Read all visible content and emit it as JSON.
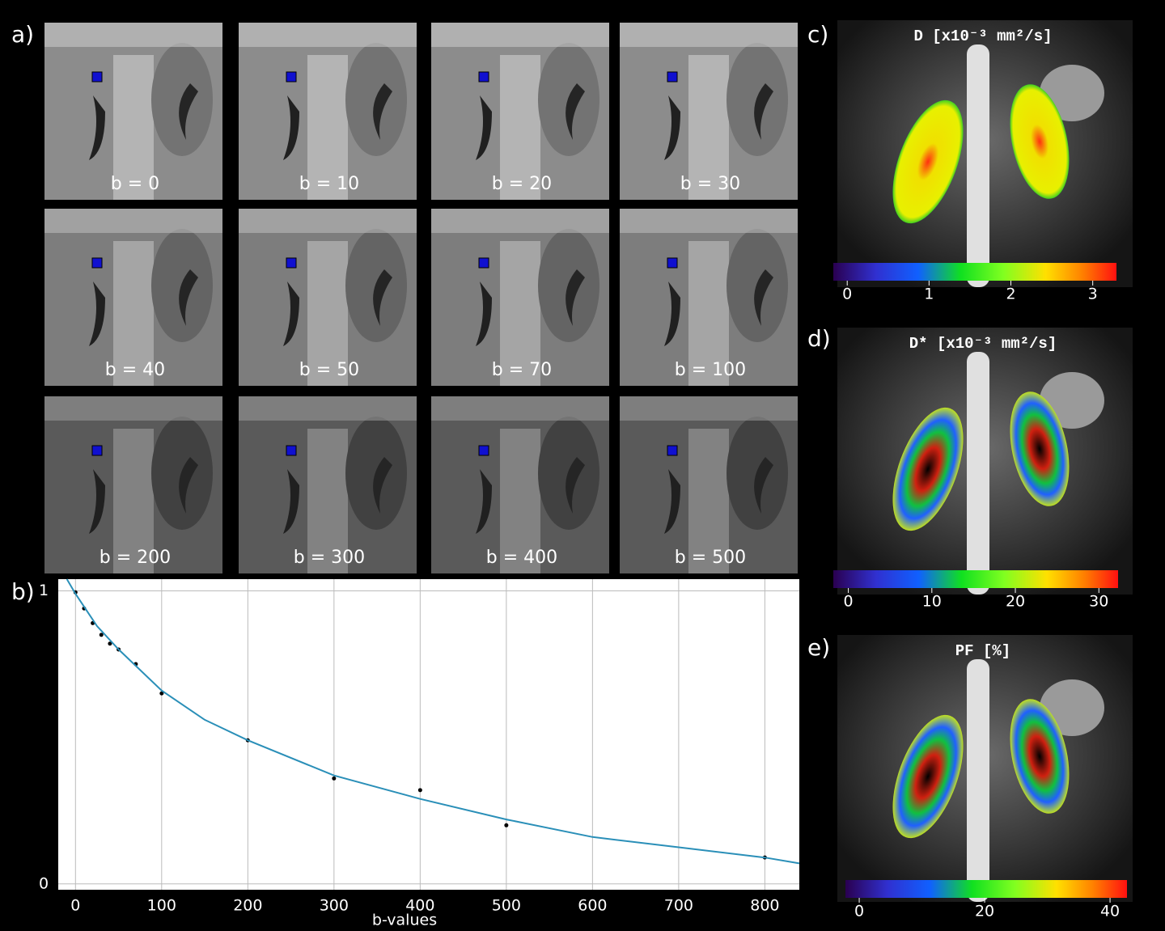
{
  "panels": {
    "a": "a)",
    "b": "b)",
    "c": "c)",
    "d": "d)",
    "e": "e)"
  },
  "tiles": [
    "b = 0",
    "b = 10",
    "b = 20",
    "b = 30",
    "b = 40",
    "b = 50",
    "b = 70",
    "b = 100",
    "b = 200",
    "b = 300",
    "b = 400",
    "b = 500"
  ],
  "chart_data": {
    "type": "scatter",
    "x_label": "b-values",
    "xlim": [
      -20,
      840
    ],
    "ylim": [
      -0.02,
      1.04
    ],
    "xticks": [
      0,
      100,
      200,
      300,
      400,
      500,
      600,
      700,
      800
    ],
    "yticks": [
      0,
      1
    ],
    "grid": true,
    "series": [
      {
        "type": "scatter",
        "color": "#000000",
        "x": [
          0,
          10,
          20,
          30,
          40,
          50,
          70,
          100,
          200,
          300,
          400,
          500,
          800
        ],
        "values": [
          0.995,
          0.94,
          0.89,
          0.85,
          0.82,
          0.8,
          0.75,
          0.65,
          0.49,
          0.36,
          0.32,
          0.2,
          0.09
        ]
      },
      {
        "type": "line",
        "color": "#2a8fb8",
        "x": [
          -10,
          0,
          25,
          50,
          100,
          150,
          200,
          300,
          400,
          500,
          600,
          700,
          800,
          840
        ],
        "values": [
          1.04,
          0.99,
          0.88,
          0.8,
          0.66,
          0.56,
          0.49,
          0.37,
          0.29,
          0.22,
          0.16,
          0.125,
          0.09,
          0.07
        ]
      }
    ]
  },
  "maps": [
    {
      "title": "D  [x10⁻³ mm²/s]",
      "clim": [
        -0.17,
        3.29
      ],
      "ticks": [
        0,
        1,
        2,
        3
      ],
      "style": "uniform"
    },
    {
      "title": "D*  [x10⁻³ mm²/s]",
      "clim": [
        -1.8,
        32.3
      ],
      "ticks": [
        0,
        10,
        20,
        30
      ],
      "style": "mixed"
    },
    {
      "title": "PF  [%]",
      "clim": [
        -2.2,
        42.7
      ],
      "ticks": [
        0,
        20,
        40
      ],
      "style": "mixed"
    }
  ]
}
